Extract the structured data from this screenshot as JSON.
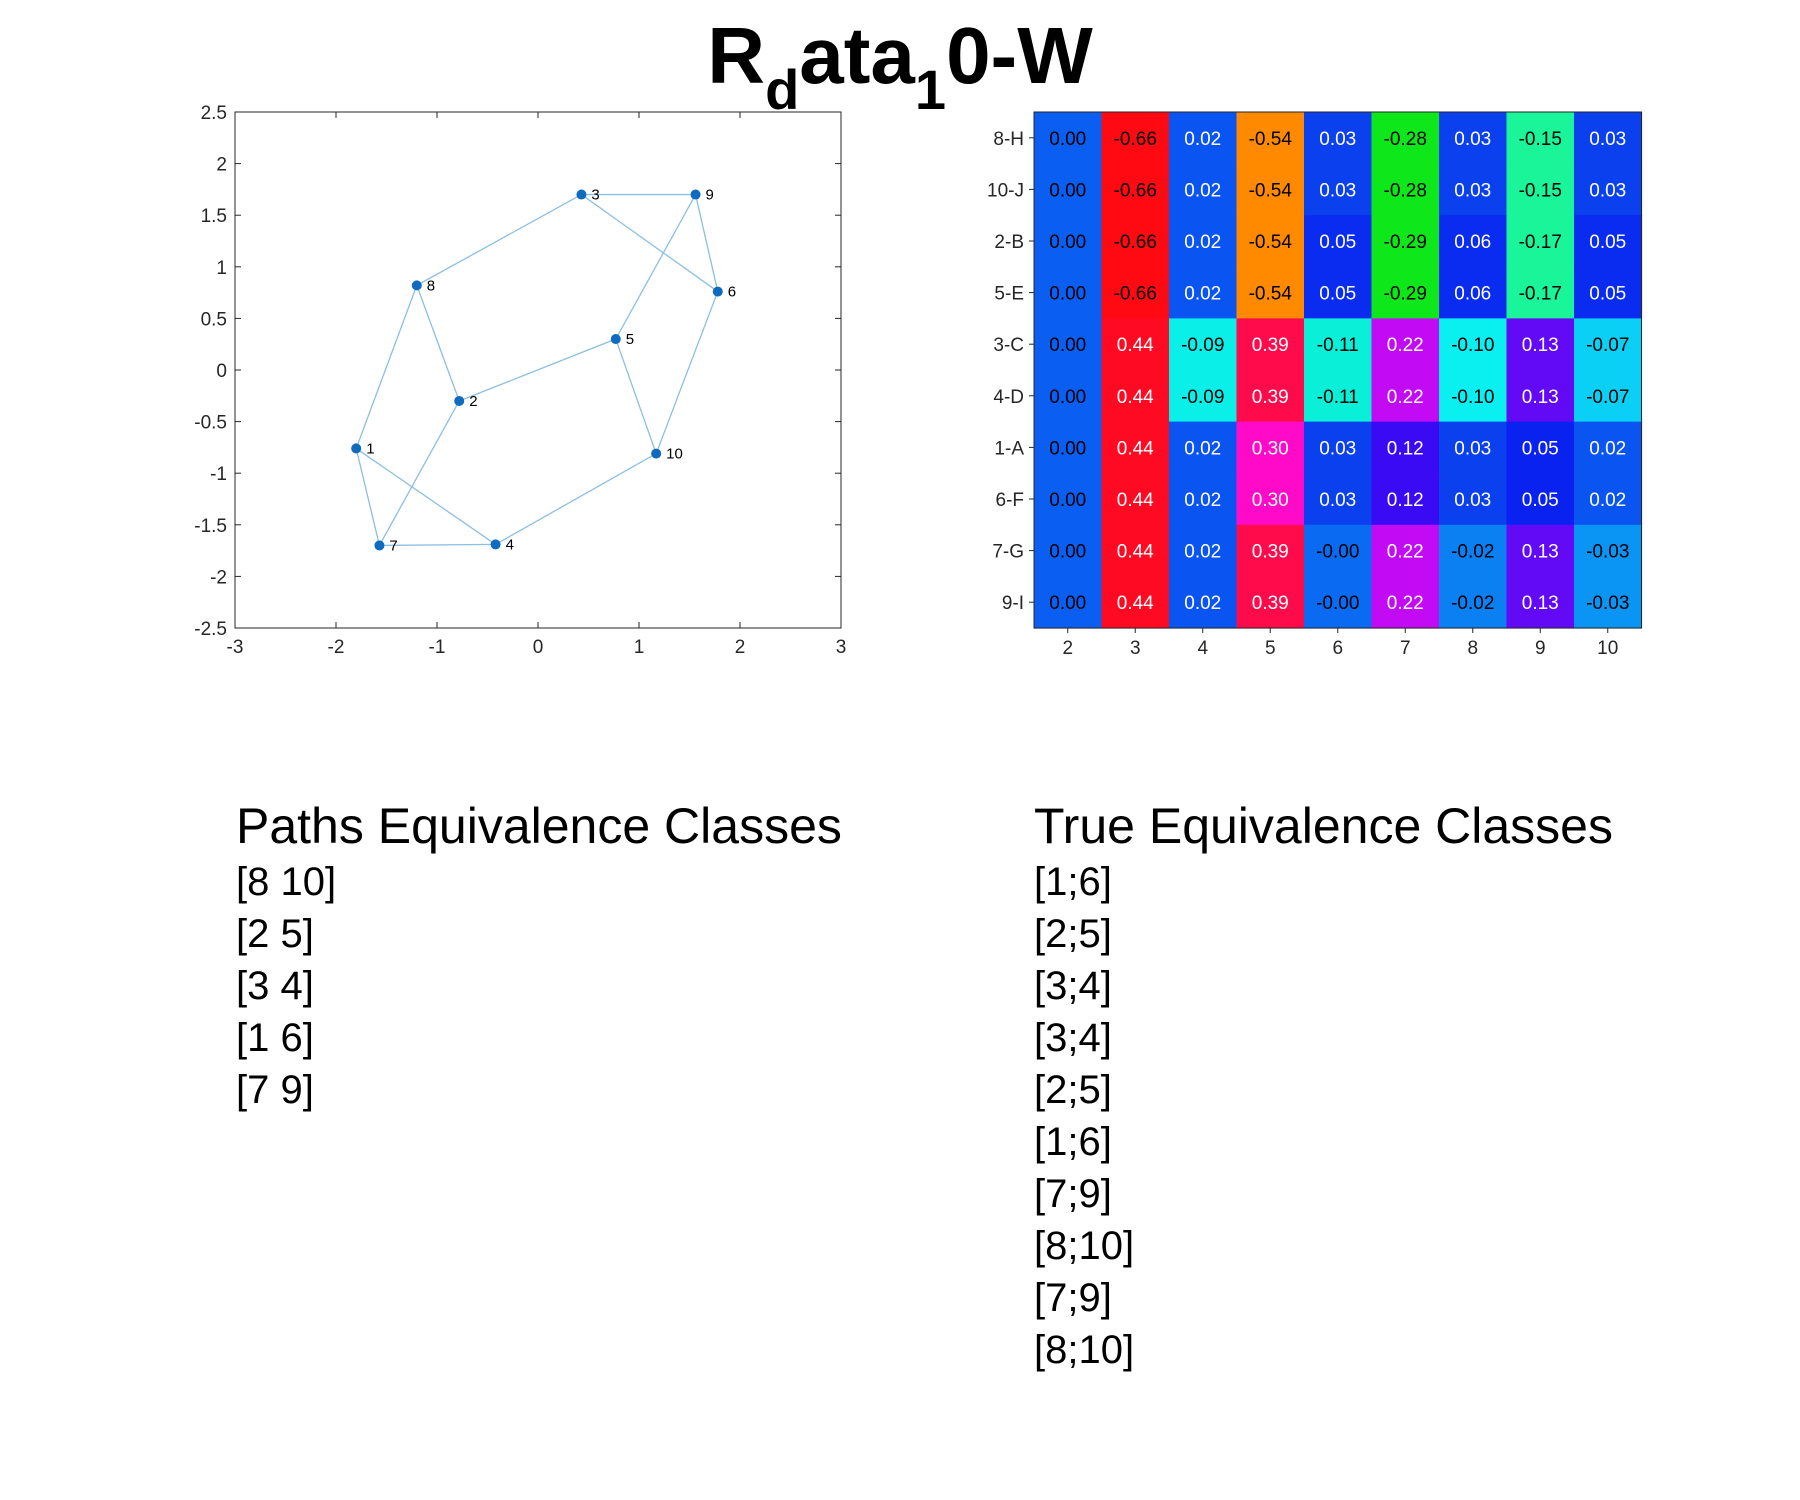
{
  "title": {
    "main_a": "R",
    "sub_a": "d",
    "main_b": "ata",
    "sub_b": "1",
    "main_c": "0-W"
  },
  "colors": {
    "node": "#0e6bbd",
    "edge": "#8bbfe3",
    "axis": "#262626"
  },
  "chart_data": [
    {
      "type": "scatter",
      "xlim": [
        -3,
        3
      ],
      "ylim": [
        -2.5,
        2.5
      ],
      "xticks": [
        "-3",
        "-2",
        "-1",
        "0",
        "1",
        "2",
        "3"
      ],
      "yticks": [
        "2.5",
        "2",
        "1.5",
        "1",
        "0.5",
        "0",
        "-0.5",
        "-1",
        "-1.5",
        "-2",
        "-2.5"
      ],
      "grid": false,
      "nodes": [
        {
          "label": "1",
          "x": -1.8,
          "y": -0.76
        },
        {
          "label": "2",
          "x": -0.78,
          "y": -0.3
        },
        {
          "label": "3",
          "x": 0.43,
          "y": 1.7
        },
        {
          "label": "4",
          "x": -0.42,
          "y": -1.69
        },
        {
          "label": "5",
          "x": 0.77,
          "y": 0.3
        },
        {
          "label": "6",
          "x": 1.78,
          "y": 0.76
        },
        {
          "label": "7",
          "x": -1.57,
          "y": -1.7
        },
        {
          "label": "8",
          "x": -1.2,
          "y": 0.82
        },
        {
          "label": "9",
          "x": 1.56,
          "y": 1.7
        },
        {
          "label": "10",
          "x": 1.17,
          "y": -0.81
        }
      ],
      "edges": [
        [
          1,
          8
        ],
        [
          1,
          7
        ],
        [
          1,
          4
        ],
        [
          7,
          4
        ],
        [
          7,
          2
        ],
        [
          8,
          2
        ],
        [
          8,
          3
        ],
        [
          3,
          9
        ],
        [
          9,
          6
        ],
        [
          9,
          5
        ],
        [
          3,
          6
        ],
        [
          2,
          5
        ],
        [
          5,
          10
        ],
        [
          6,
          10
        ],
        [
          4,
          10
        ]
      ]
    },
    {
      "type": "heatmap",
      "x_labels": [
        "2",
        "3",
        "4",
        "5",
        "6",
        "7",
        "8",
        "9",
        "10"
      ],
      "y_labels": [
        "8-H",
        "10-J",
        "2-B",
        "5-E",
        "3-C",
        "4-D",
        "1-A",
        "6-F",
        "7-G",
        "9-I"
      ],
      "values": [
        [
          "0.00",
          "-0.66",
          "0.02",
          "-0.54",
          "0.03",
          "-0.28",
          "0.03",
          "-0.15",
          "0.03"
        ],
        [
          "0.00",
          "-0.66",
          "0.02",
          "-0.54",
          "0.03",
          "-0.28",
          "0.03",
          "-0.15",
          "0.03"
        ],
        [
          "0.00",
          "-0.66",
          "0.02",
          "-0.54",
          "0.05",
          "-0.29",
          "0.06",
          "-0.17",
          "0.05"
        ],
        [
          "0.00",
          "-0.66",
          "0.02",
          "-0.54",
          "0.05",
          "-0.29",
          "0.06",
          "-0.17",
          "0.05"
        ],
        [
          "0.00",
          "0.44",
          "-0.09",
          "0.39",
          "-0.11",
          "0.22",
          "-0.10",
          "0.13",
          "-0.07"
        ],
        [
          "0.00",
          "0.44",
          "-0.09",
          "0.39",
          "-0.11",
          "0.22",
          "-0.10",
          "0.13",
          "-0.07"
        ],
        [
          "0.00",
          "0.44",
          "0.02",
          "0.30",
          "0.03",
          "0.12",
          "0.03",
          "0.05",
          "0.02"
        ],
        [
          "0.00",
          "0.44",
          "0.02",
          "0.30",
          "0.03",
          "0.12",
          "0.03",
          "0.05",
          "0.02"
        ],
        [
          "0.00",
          "0.44",
          "0.02",
          "0.39",
          "-0.00",
          "0.22",
          "-0.02",
          "0.13",
          "-0.03"
        ],
        [
          "0.00",
          "0.44",
          "0.02",
          "0.39",
          "-0.00",
          "0.22",
          "-0.02",
          "0.13",
          "-0.03"
        ]
      ],
      "cell_colors": [
        [
          "#0a5ff2",
          "#ff0a13",
          "#0a55f2",
          "#ff8a00",
          "#0a40ee",
          "#0ee81a",
          "#0a40ee",
          "#1af59a",
          "#0a40ee"
        ],
        [
          "#0a5ff2",
          "#ff0a13",
          "#0a55f2",
          "#ff8a00",
          "#0a40ee",
          "#0ee81a",
          "#0a40ee",
          "#1af59a",
          "#0a40ee"
        ],
        [
          "#0a5ff2",
          "#ff0a13",
          "#0a55f2",
          "#ff8a00",
          "#0a2bf0",
          "#0ee81a",
          "#0a2bf0",
          "#1af59a",
          "#0a2bf0"
        ],
        [
          "#0a5ff2",
          "#ff0a13",
          "#0a55f2",
          "#ff8a00",
          "#0a2bf0",
          "#0ee81a",
          "#0a2bf0",
          "#1af59a",
          "#0a2bf0"
        ],
        [
          "#0a5ff2",
          "#ff0a22",
          "#0af0e8",
          "#ff0a4a",
          "#0af0d8",
          "#c30af5",
          "#0af0f0",
          "#620af5",
          "#0ad0f5"
        ],
        [
          "#0a5ff2",
          "#ff0a22",
          "#0af0e8",
          "#ff0a4a",
          "#0af0d8",
          "#c30af5",
          "#0af0f0",
          "#620af5",
          "#0ad0f5"
        ],
        [
          "#0a5ff2",
          "#ff0a22",
          "#0a55f2",
          "#ff0ac8",
          "#0a40ee",
          "#3a0af5",
          "#0a40ee",
          "#0a22f0",
          "#0a55f2"
        ],
        [
          "#0a5ff2",
          "#ff0a22",
          "#0a55f2",
          "#ff0ac8",
          "#0a40ee",
          "#3a0af5",
          "#0a40ee",
          "#0a22f0",
          "#0a55f2"
        ],
        [
          "#0a5ff2",
          "#ff0a22",
          "#0a55f2",
          "#ff0a4a",
          "#0a6af2",
          "#c30af5",
          "#0a80f2",
          "#620af5",
          "#0a95f5"
        ],
        [
          "#0a5ff2",
          "#ff0a22",
          "#0a55f2",
          "#ff0a4a",
          "#0a6af2",
          "#c30af5",
          "#0a80f2",
          "#620af5",
          "#0a95f5"
        ]
      ],
      "text_colors": [
        [
          "#000000",
          "#000000",
          "#ffffff",
          "#000000",
          "#ffffff",
          "#000000",
          "#ffffff",
          "#000000",
          "#ffffff"
        ],
        [
          "#000000",
          "#000000",
          "#ffffff",
          "#000000",
          "#ffffff",
          "#000000",
          "#ffffff",
          "#000000",
          "#ffffff"
        ],
        [
          "#000000",
          "#000000",
          "#ffffff",
          "#000000",
          "#ffffff",
          "#000000",
          "#ffffff",
          "#000000",
          "#ffffff"
        ],
        [
          "#000000",
          "#000000",
          "#ffffff",
          "#000000",
          "#ffffff",
          "#000000",
          "#ffffff",
          "#000000",
          "#ffffff"
        ],
        [
          "#000000",
          "#ffffff",
          "#000000",
          "#ffffff",
          "#000000",
          "#ffffff",
          "#000000",
          "#ffffff",
          "#000000"
        ],
        [
          "#000000",
          "#ffffff",
          "#000000",
          "#ffffff",
          "#000000",
          "#ffffff",
          "#000000",
          "#ffffff",
          "#000000"
        ],
        [
          "#000000",
          "#ffffff",
          "#ffffff",
          "#ffffff",
          "#ffffff",
          "#ffffff",
          "#ffffff",
          "#ffffff",
          "#ffffff"
        ],
        [
          "#000000",
          "#ffffff",
          "#ffffff",
          "#ffffff",
          "#ffffff",
          "#ffffff",
          "#ffffff",
          "#ffffff",
          "#ffffff"
        ],
        [
          "#000000",
          "#ffffff",
          "#ffffff",
          "#ffffff",
          "#000000",
          "#ffffff",
          "#000000",
          "#ffffff",
          "#000000"
        ],
        [
          "#000000",
          "#ffffff",
          "#ffffff",
          "#ffffff",
          "#000000",
          "#ffffff",
          "#000000",
          "#ffffff",
          "#000000"
        ]
      ]
    }
  ],
  "paths_classes": {
    "heading": "Paths Equivalence Classes",
    "items": [
      "[8 10]",
      "[2 5]",
      "[3 4]",
      "[1 6]",
      "[7 9]"
    ]
  },
  "true_classes": {
    "heading": "True Equivalence Classes",
    "items": [
      "[1;6]",
      "[2;5]",
      "[3;4]",
      "[3;4]",
      "[2;5]",
      "[1;6]",
      "[7;9]",
      "[8;10]",
      "[7;9]",
      "[8;10]"
    ]
  }
}
